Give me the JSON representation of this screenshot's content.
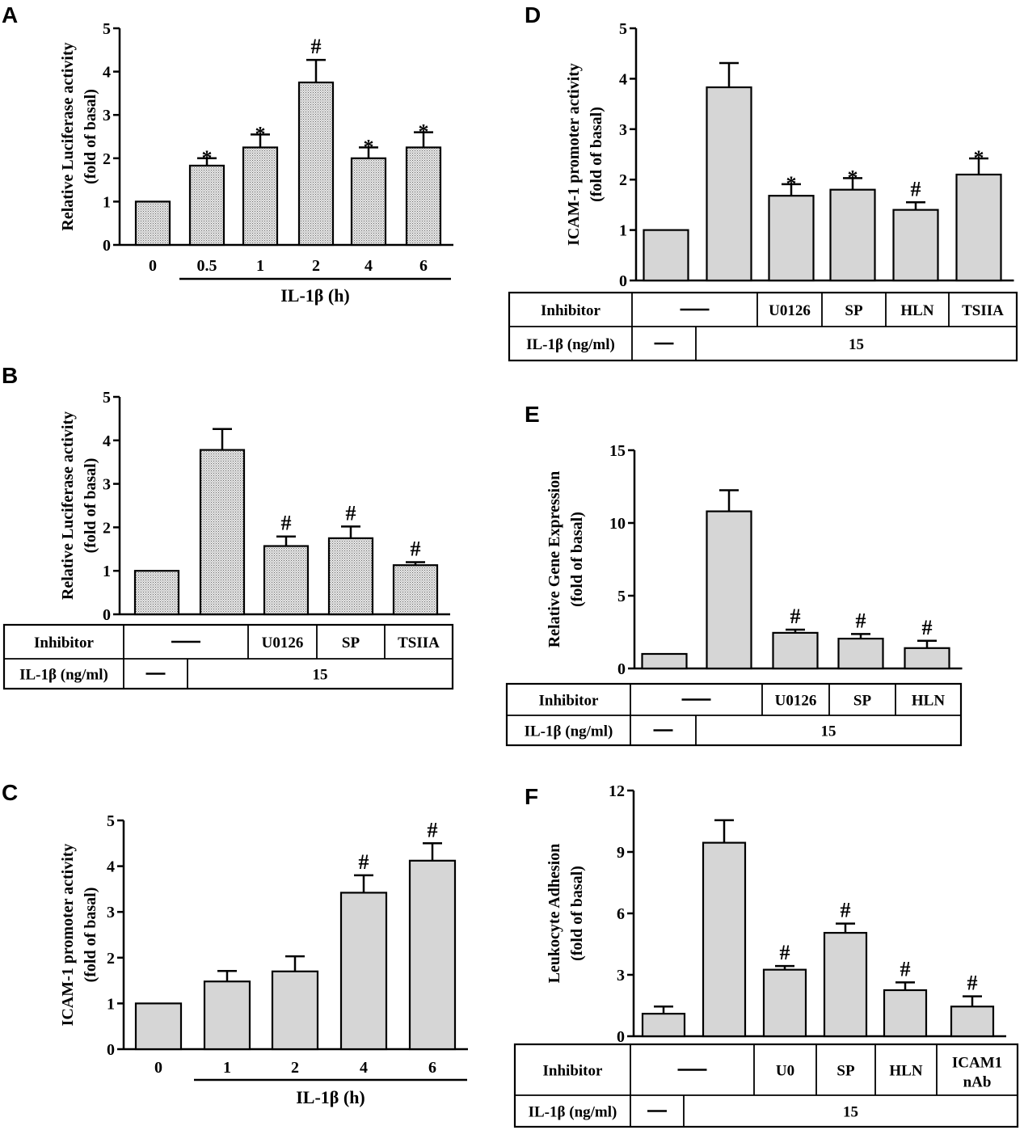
{
  "colors": {
    "bar_fill_gray": "#d6d6d6",
    "bar_fill_dotted": "#cfcfcf",
    "ink": "#000000"
  },
  "chart_data": [
    {
      "id": "A",
      "panel_letter": "A",
      "type": "bar",
      "ylabel": [
        "Relative Luciferase activity",
        "(fold of basal)"
      ],
      "ylim": [
        0,
        5
      ],
      "yticks": [
        "0",
        "1",
        "2",
        "3",
        "4",
        "5"
      ],
      "categories": [
        "0",
        "0.5",
        "1",
        "2",
        "4",
        "6"
      ],
      "values": [
        1.0,
        1.83,
        2.25,
        3.75,
        2.0,
        2.25
      ],
      "errors": [
        0,
        0.17,
        0.3,
        0.52,
        0.25,
        0.35
      ],
      "marks": [
        "",
        "*",
        "*",
        "#",
        "*",
        "*"
      ],
      "xtitle": "IL-1β (h)",
      "pattern": "dotted"
    },
    {
      "id": "B",
      "panel_letter": "B",
      "type": "bar",
      "ylabel": [
        "Relative Luciferase activity",
        "(fold of basal)"
      ],
      "ylim": [
        0,
        5
      ],
      "yticks": [
        "0",
        "1",
        "2",
        "3",
        "4",
        "5"
      ],
      "values": [
        1.0,
        3.78,
        1.57,
        1.75,
        1.13
      ],
      "errors": [
        0,
        0.48,
        0.22,
        0.27,
        0.07
      ],
      "marks": [
        "",
        "",
        "#",
        "#",
        "#"
      ],
      "pattern": "dotted",
      "table": {
        "row1": {
          "label": "Inhibitor",
          "cells": [
            "—",
            "U0126",
            "SP",
            "TSIIA"
          ]
        },
        "row2": {
          "label": "IL-1β (ng/ml)",
          "cells": [
            "—",
            "15"
          ]
        }
      }
    },
    {
      "id": "C",
      "panel_letter": "C",
      "type": "bar",
      "ylabel": [
        "ICAM-1 promoter activity",
        "(fold of basal)"
      ],
      "ylim": [
        0,
        5
      ],
      "yticks": [
        "0",
        "1",
        "2",
        "3",
        "4",
        "5"
      ],
      "categories": [
        "0",
        "1",
        "2",
        "4",
        "6"
      ],
      "values": [
        1.0,
        1.48,
        1.7,
        3.42,
        4.12
      ],
      "errors": [
        0,
        0.23,
        0.33,
        0.38,
        0.38
      ],
      "marks": [
        "",
        "",
        "",
        "#",
        "#"
      ],
      "xtitle": "IL-1β (h)",
      "pattern": "gray"
    },
    {
      "id": "D",
      "panel_letter": "D",
      "type": "bar",
      "ylabel": [
        "ICAM-1 promoter activity",
        "(fold of basal)"
      ],
      "ylim": [
        0,
        5
      ],
      "yticks": [
        "0",
        "1",
        "2",
        "3",
        "4",
        "5"
      ],
      "values": [
        1.0,
        3.83,
        1.68,
        1.8,
        1.4,
        2.1
      ],
      "errors": [
        0,
        0.48,
        0.23,
        0.23,
        0.15,
        0.32
      ],
      "marks": [
        "",
        "",
        "*",
        "*",
        "#",
        "*"
      ],
      "pattern": "gray",
      "table": {
        "row1": {
          "label": "Inhibitor",
          "cells": [
            "—",
            "U0126",
            "SP",
            "HLN",
            "TSIIA"
          ]
        },
        "row2": {
          "label": "IL-1β (ng/ml)",
          "cells": [
            "—",
            "15"
          ]
        }
      }
    },
    {
      "id": "E",
      "panel_letter": "E",
      "type": "bar",
      "ylabel": [
        "Relative Gene  Expression",
        "(fold of basal)"
      ],
      "ylim": [
        0,
        15
      ],
      "yticks": [
        "0",
        "5",
        "10",
        "15"
      ],
      "values": [
        1.0,
        10.8,
        2.45,
        2.05,
        1.4
      ],
      "errors": [
        0,
        1.45,
        0.22,
        0.32,
        0.5
      ],
      "marks": [
        "",
        "",
        "#",
        "#",
        "#"
      ],
      "pattern": "gray",
      "table": {
        "row1": {
          "label": "Inhibitor",
          "cells": [
            "—",
            "U0126",
            "SP",
            "HLN"
          ]
        },
        "row2": {
          "label": "IL-1β  (ng/ml)",
          "cells": [
            "—",
            "15"
          ]
        }
      }
    },
    {
      "id": "F",
      "panel_letter": "F",
      "type": "bar",
      "ylabel": [
        "Leukocyte Adhesion",
        "(fold of basal)"
      ],
      "ylim": [
        0,
        12
      ],
      "yticks": [
        "0",
        "3",
        "6",
        "9",
        "12"
      ],
      "values": [
        1.1,
        9.45,
        3.25,
        5.05,
        2.25,
        1.45
      ],
      "errors": [
        0.35,
        1.1,
        0.18,
        0.45,
        0.38,
        0.5
      ],
      "marks": [
        "",
        "",
        "#",
        "#",
        "#",
        "#"
      ],
      "pattern": "gray",
      "table": {
        "row1": {
          "label": "Inhibitor",
          "cells": [
            "—",
            "U0",
            "SP",
            "HLN",
            "ICAM1\nnAb"
          ]
        },
        "row2": {
          "label": "IL-1β (ng/ml)",
          "cells": [
            "—",
            "15"
          ]
        }
      }
    }
  ]
}
